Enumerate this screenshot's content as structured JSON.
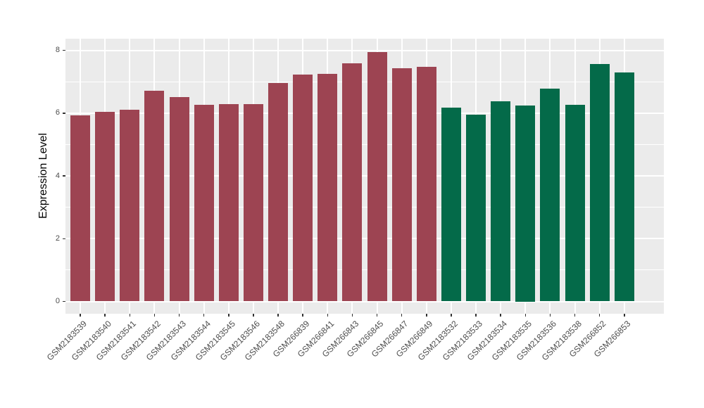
{
  "figure": {
    "background": "#FFFFFF"
  },
  "chart_data": {
    "type": "bar",
    "title": "",
    "xlabel": "",
    "ylabel": "Expression Level",
    "ylim": [
      0,
      8.37
    ],
    "yticks": [
      0,
      2,
      4,
      6,
      8
    ],
    "yminorticks": [
      1,
      3,
      5,
      7
    ],
    "grid": "on",
    "legend": "none",
    "panel_background": "#EBEBEB",
    "gridline_color": "#FFFFFF",
    "tick_mark_color": "#333333",
    "tick_label_color": "#4D4D4D",
    "axis_title_color": "#000000",
    "x_tick_label_rotation_deg": 45,
    "categories": [
      "GSM2183539",
      "GSM2183540",
      "GSM2183541",
      "GSM2183542",
      "GSM2183543",
      "GSM2183544",
      "GSM2183545",
      "GSM2183546",
      "GSM2183548",
      "GSM266839",
      "GSM266841",
      "GSM266843",
      "GSM266845",
      "GSM266847",
      "GSM266849",
      "GSM2183532",
      "GSM2183533",
      "GSM2183534",
      "GSM2183535",
      "GSM2183536",
      "GSM2183538",
      "GSM266852",
      "GSM266853"
    ],
    "values": [
      5.93,
      6.04,
      6.11,
      6.71,
      6.51,
      6.27,
      6.29,
      6.28,
      6.95,
      7.23,
      7.26,
      7.58,
      7.95,
      7.44,
      7.47,
      6.17,
      5.95,
      6.38,
      6.25,
      6.79,
      6.27,
      7.56,
      7.3
    ],
    "groups": [
      "group1",
      "group1",
      "group1",
      "group1",
      "group1",
      "group1",
      "group1",
      "group1",
      "group1",
      "group1",
      "group1",
      "group1",
      "group1",
      "group1",
      "group1",
      "group2",
      "group2",
      "group2",
      "group2",
      "group2",
      "group2",
      "group2",
      "group2"
    ],
    "group_colors": {
      "group1": "#9D4452",
      "group2": "#046A49"
    }
  }
}
